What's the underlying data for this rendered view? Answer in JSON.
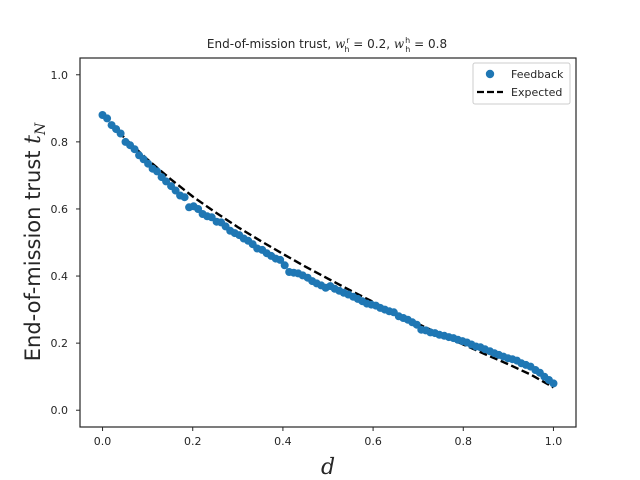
{
  "chart_data": {
    "type": "scatter",
    "title": {
      "base": "End-of-mission trust, ",
      "term1_var": "w",
      "term1_sub": "h",
      "term1_sup": "r",
      "term1_value": " = 0.2, ",
      "term2_var": "w",
      "term2_sub": "h",
      "term2_sup": "h",
      "term2_value": " = 0.8"
    },
    "xlabel": "d",
    "ylabel": {
      "base": "End-of-mission trust ",
      "var": "t",
      "sub": "N"
    },
    "xlim": [
      -0.05,
      1.05
    ],
    "ylim": [
      -0.05,
      1.05
    ],
    "xticks": [
      0.0,
      0.2,
      0.4,
      0.6,
      0.8,
      1.0
    ],
    "xtick_labels": [
      "0.0",
      "0.2",
      "0.4",
      "0.6",
      "0.8",
      "1.0"
    ],
    "yticks": [
      0.0,
      0.2,
      0.4,
      0.6,
      0.8,
      1.0
    ],
    "ytick_labels": [
      "0.0",
      "0.2",
      "0.4",
      "0.6",
      "0.8",
      "1.0"
    ],
    "grid": false,
    "legend": {
      "position": "top-right",
      "entries": [
        "Feedback",
        "Expected"
      ]
    },
    "colors": {
      "feedback": "#1f77b4",
      "expected": "#000000",
      "axes": "#262626"
    },
    "series": [
      {
        "name": "Feedback",
        "style": "markers",
        "x": [
          0.0,
          0.01,
          0.02,
          0.03,
          0.04,
          0.051,
          0.061,
          0.071,
          0.081,
          0.091,
          0.101,
          0.111,
          0.121,
          0.131,
          0.141,
          0.152,
          0.162,
          0.172,
          0.182,
          0.192,
          0.202,
          0.212,
          0.222,
          0.232,
          0.242,
          0.253,
          0.263,
          0.273,
          0.283,
          0.293,
          0.303,
          0.313,
          0.323,
          0.333,
          0.343,
          0.354,
          0.364,
          0.374,
          0.384,
          0.394,
          0.404,
          0.414,
          0.424,
          0.434,
          0.444,
          0.455,
          0.465,
          0.475,
          0.485,
          0.495,
          0.505,
          0.515,
          0.525,
          0.535,
          0.545,
          0.556,
          0.566,
          0.576,
          0.586,
          0.596,
          0.606,
          0.616,
          0.626,
          0.636,
          0.646,
          0.657,
          0.667,
          0.677,
          0.687,
          0.697,
          0.707,
          0.717,
          0.727,
          0.737,
          0.747,
          0.758,
          0.768,
          0.778,
          0.788,
          0.798,
          0.808,
          0.818,
          0.828,
          0.838,
          0.848,
          0.859,
          0.869,
          0.879,
          0.889,
          0.899,
          0.909,
          0.919,
          0.929,
          0.939,
          0.949,
          0.96,
          0.97,
          0.98,
          0.99,
          1.0
        ],
        "y": [
          0.88,
          0.87,
          0.85,
          0.838,
          0.825,
          0.8,
          0.79,
          0.778,
          0.76,
          0.748,
          0.735,
          0.72,
          0.712,
          0.695,
          0.682,
          0.668,
          0.655,
          0.64,
          0.635,
          0.605,
          0.608,
          0.6,
          0.585,
          0.578,
          0.575,
          0.562,
          0.56,
          0.548,
          0.535,
          0.528,
          0.522,
          0.512,
          0.505,
          0.495,
          0.482,
          0.478,
          0.468,
          0.46,
          0.452,
          0.448,
          0.432,
          0.412,
          0.41,
          0.408,
          0.402,
          0.395,
          0.385,
          0.378,
          0.372,
          0.365,
          0.37,
          0.362,
          0.356,
          0.35,
          0.345,
          0.338,
          0.332,
          0.325,
          0.318,
          0.315,
          0.312,
          0.305,
          0.3,
          0.295,
          0.292,
          0.28,
          0.275,
          0.27,
          0.262,
          0.255,
          0.24,
          0.238,
          0.232,
          0.23,
          0.225,
          0.222,
          0.218,
          0.215,
          0.21,
          0.206,
          0.202,
          0.196,
          0.19,
          0.188,
          0.182,
          0.176,
          0.17,
          0.165,
          0.16,
          0.155,
          0.152,
          0.148,
          0.14,
          0.135,
          0.13,
          0.12,
          0.112,
          0.1,
          0.09,
          0.08
        ]
      },
      {
        "name": "Expected",
        "style": "dashed-line",
        "x": [
          0.0,
          0.05,
          0.1,
          0.15,
          0.2,
          0.25,
          0.3,
          0.35,
          0.4,
          0.45,
          0.5,
          0.55,
          0.6,
          0.65,
          0.7,
          0.75,
          0.8,
          0.85,
          0.9,
          0.95,
          1.0
        ],
        "y": [
          0.88,
          0.81,
          0.747,
          0.69,
          0.637,
          0.59,
          0.546,
          0.505,
          0.466,
          0.428,
          0.392,
          0.357,
          0.323,
          0.289,
          0.257,
          0.226,
          0.196,
          0.166,
          0.137,
          0.106,
          0.068
        ]
      }
    ]
  }
}
